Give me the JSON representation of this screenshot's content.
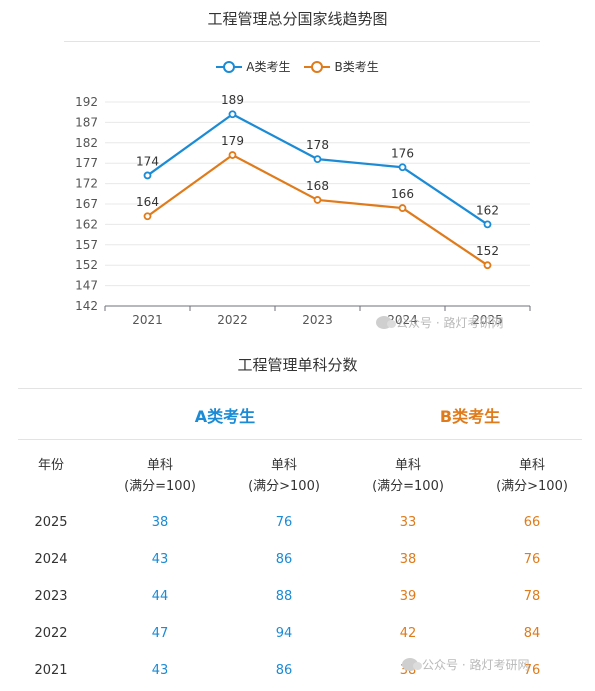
{
  "chart_data": {
    "type": "line",
    "title": "工程管理总分国家线趋势图",
    "categories": [
      "2021",
      "2022",
      "2023",
      "2024",
      "2025"
    ],
    "series": [
      {
        "name": "A类考生",
        "values": [
          174,
          189,
          178,
          176,
          162
        ],
        "color": "#1b8bd6"
      },
      {
        "name": "B类考生",
        "values": [
          164,
          179,
          168,
          166,
          152
        ],
        "color": "#e07b1b"
      }
    ],
    "yticks": [
      142,
      147,
      152,
      157,
      162,
      167,
      172,
      177,
      182,
      187,
      192
    ],
    "ylim": [
      142,
      192
    ],
    "grid": true,
    "legend": "top-center",
    "xlabel": "",
    "ylabel": ""
  },
  "watermark": {
    "text": "公众号 · 路灯考研网"
  },
  "table": {
    "title": "工程管理单科分数",
    "group_a": "A类考生",
    "group_b": "B类考生",
    "col_year": "年份",
    "col_single": "单科",
    "col_full_eq": "(满分=100)",
    "col_full_gt": "(满分>100)",
    "rows": [
      [
        "2025",
        "38",
        "76",
        "33",
        "66"
      ],
      [
        "2024",
        "43",
        "86",
        "38",
        "76"
      ],
      [
        "2023",
        "44",
        "88",
        "39",
        "78"
      ],
      [
        "2022",
        "47",
        "94",
        "42",
        "84"
      ],
      [
        "2021",
        "43",
        "86",
        "38",
        "76"
      ]
    ]
  }
}
